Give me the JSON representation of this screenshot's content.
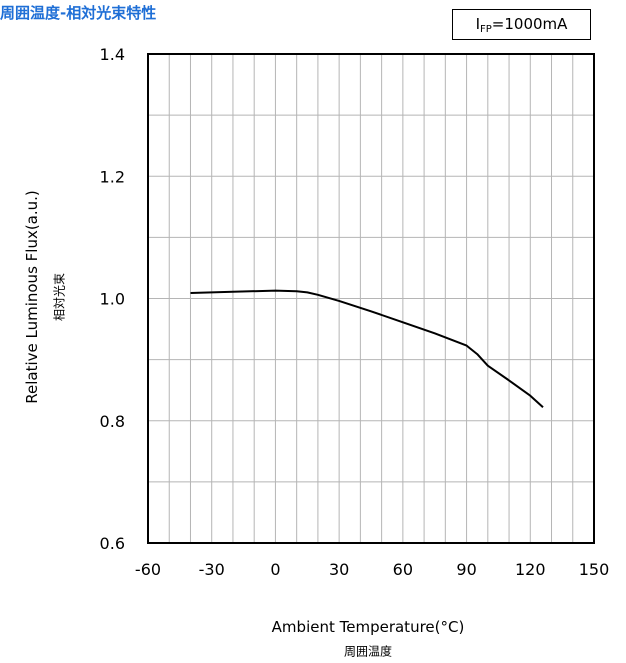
{
  "title": "周囲温度-相対光束特性",
  "legend": {
    "main": "I",
    "sub": "FP",
    "suffix": "=1000mA"
  },
  "chart_data": {
    "type": "line",
    "title": "周囲温度-相対光束特性",
    "xlabel": "Ambient Temperature(°C)",
    "xlabel_sub": "周囲温度",
    "ylabel": "Relative Luminous Flux(a.u.)",
    "ylabel_sub": "相対光束",
    "xlim": [
      -60,
      150
    ],
    "ylim": [
      0.6,
      1.4
    ],
    "xticks": [
      -60,
      -30,
      0,
      30,
      60,
      90,
      120,
      150
    ],
    "yticks": [
      0.6,
      0.8,
      1.0,
      1.2,
      1.4
    ],
    "xtick_labels": [
      "-60",
      "-30",
      "0",
      "30",
      "60",
      "90",
      "120",
      "150"
    ],
    "ytick_labels": [
      "0.6",
      "0.8",
      "1.0",
      "1.2",
      "1.4"
    ],
    "grid": true,
    "series": [
      {
        "x": [
          -40,
          -20,
          0,
          10,
          15,
          20,
          30,
          45,
          60,
          75,
          90,
          95,
          100,
          110,
          120,
          126
        ],
        "y": [
          1.009,
          1.011,
          1.013,
          1.012,
          1.01,
          1.006,
          0.996,
          0.979,
          0.961,
          0.943,
          0.923,
          0.909,
          0.89,
          0.866,
          0.841,
          0.822
        ]
      }
    ],
    "legend_text": "IFP=1000mA",
    "legend_position": "top-right"
  }
}
